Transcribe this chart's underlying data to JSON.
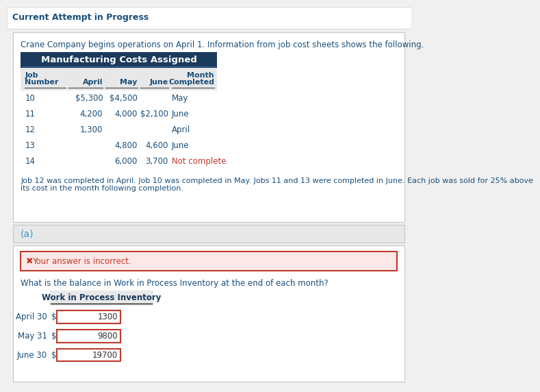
{
  "page_title": "Current Attempt in Progress",
  "intro_text": "Crane Company begins operations on April 1. Information from job cost sheets shows the following.",
  "table_header": "Manufacturing Costs Assigned",
  "col_headers_line1": [
    "Job",
    "",
    "",
    "",
    "Month"
  ],
  "col_headers_line2": [
    "Number",
    "April",
    "May",
    "June",
    "Completed"
  ],
  "jobs": [
    {
      "job": "10",
      "april": "$5,300",
      "may": "$4,500",
      "june": "",
      "completed": "May",
      "nc": false
    },
    {
      "job": "11",
      "april": "4,200",
      "may": "4,000",
      "june": "$2,100",
      "completed": "June",
      "nc": false
    },
    {
      "job": "12",
      "april": "1,300",
      "may": "",
      "june": "",
      "completed": "April",
      "nc": false
    },
    {
      "job": "13",
      "april": "",
      "may": "4,800",
      "june": "4,600",
      "completed": "June",
      "nc": false
    },
    {
      "job": "14",
      "april": "",
      "may": "6,000",
      "june": "3,700",
      "completed": "Not complete",
      "nc": true
    }
  ],
  "footnote_line1": "Job 12 was completed in April. Job 10 was completed in May. Jobs 11 and 13 were completed in June. Each job was sold for 25% above",
  "footnote_line2": "its cost in the month following completion.",
  "part_label": "(a)",
  "error_text": "  Your answer is incorrect.",
  "question_text": "What is the balance in Work in Process Inventory at the end of each month?",
  "wip_header": "Work in Process Inventory",
  "wip_rows": [
    {
      "label": "April 30",
      "value": "1300"
    },
    {
      "label": "May 31",
      "value": "9800"
    },
    {
      "label": "June 30",
      "value": "19700"
    }
  ],
  "bg_color": "#f0f0f0",
  "white": "#ffffff",
  "dark_blue_header": "#1b3a5c",
  "light_gray_header": "#e8e8e8",
  "text_blue": "#1a4f7a",
  "not_complete_color": "#c0392b",
  "error_bg": "#fce8e8",
  "error_border": "#c0392b",
  "error_text_color": "#c0392b",
  "input_border": "#c0392b",
  "card_border": "#cccccc",
  "underline_color": "#555555",
  "wip_underline_color": "#222222"
}
